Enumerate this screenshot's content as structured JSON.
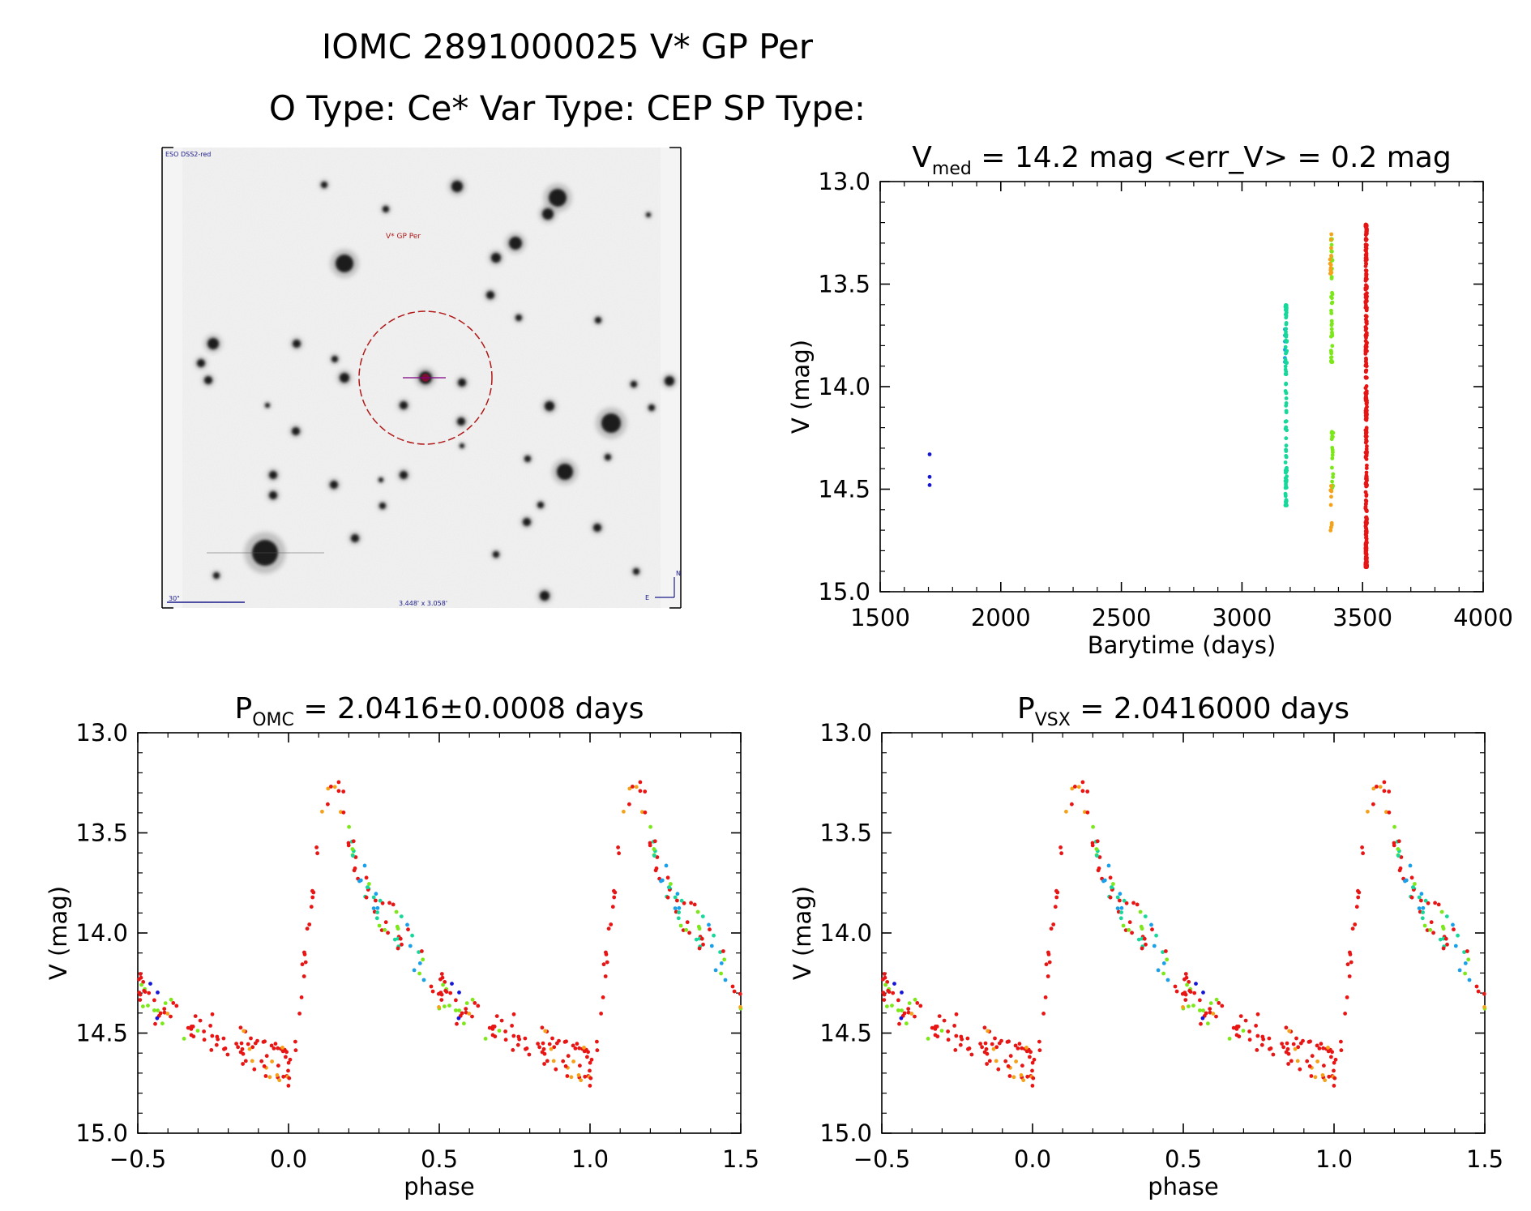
{
  "figure": {
    "title_line1": "IOMC 2891000025   V* GP Per",
    "title_line2": "O Type: Ce*  Var Type: CEP  SP Type:"
  },
  "sky_image": {
    "survey_label": "ESO DSS2-red",
    "target_label": "V* GP Per",
    "scale_label": "30\"",
    "fov_label": "3.448' x 3.058'",
    "north_label": "N",
    "east_label": "E"
  },
  "colors": {
    "blue": "#1515d8",
    "cyan": "#1aa0e8",
    "teal": "#15d89a",
    "green": "#7ce81a",
    "orange": "#f5a21a",
    "red": "#e81515",
    "circle": "#b01818",
    "target_mark": "#800080"
  },
  "chart_data": [
    {
      "id": "lightcurve",
      "type": "scatter",
      "title_main": "V",
      "title_sub": "med",
      "title_rest": " = 14.2 mag <err_V> = 0.2 mag",
      "xlabel": "Barytime (days)",
      "ylabel": "V (mag)",
      "xlim": [
        1500,
        4000
      ],
      "ylim": [
        15.0,
        13.0
      ],
      "xticks": [
        "1500",
        "2000",
        "2500",
        "3000",
        "3500",
        "4000"
      ],
      "yticks": [
        "13.0",
        "13.5",
        "14.0",
        "14.5",
        "15.0"
      ],
      "groups": [
        {
          "color": "blue",
          "x": 1705,
          "mags": [
            14.33,
            14.44,
            14.48
          ]
        },
        {
          "color": "cyan",
          "x": 3178,
          "mags": [
            13.72,
            13.75,
            13.78,
            13.82,
            13.86,
            13.88
          ]
        },
        {
          "color": "teal",
          "x": 3183,
          "range": [
            13.6,
            14.58
          ],
          "n": 90
        },
        {
          "color": "green",
          "x": 3372,
          "range": [
            13.28,
            13.88
          ],
          "n": 45
        },
        {
          "color": "orange",
          "x": 3368,
          "range": [
            13.25,
            13.45
          ],
          "n": 14
        },
        {
          "color": "green",
          "x": 3375,
          "range": [
            14.22,
            14.5
          ],
          "n": 20
        },
        {
          "color": "orange",
          "x": 3370,
          "range": [
            14.45,
            14.73
          ],
          "n": 10
        },
        {
          "color": "red",
          "x": 3515,
          "range": [
            13.21,
            14.88
          ],
          "n": 340
        }
      ]
    },
    {
      "id": "phase_omc",
      "type": "scatter",
      "title_main": "P",
      "title_sub": "OMC",
      "title_rest": " = 2.0416±0.0008 days",
      "xlabel": "phase",
      "ylabel": "V (mag)",
      "xlim": [
        -0.5,
        1.5
      ],
      "ylim": [
        15.0,
        13.0
      ],
      "xticks": [
        "−0.5",
        "0.0",
        "0.5",
        "1.0",
        "1.5"
      ],
      "yticks": [
        "13.0",
        "13.5",
        "14.0",
        "14.5",
        "15.0"
      ],
      "template": [
        [
          0.0,
          14.68
        ],
        [
          0.03,
          14.45
        ],
        [
          0.06,
          14.05
        ],
        [
          0.09,
          13.65
        ],
        [
          0.12,
          13.35
        ],
        [
          0.15,
          13.27
        ],
        [
          0.18,
          13.38
        ],
        [
          0.2,
          13.52
        ],
        [
          0.25,
          13.72
        ],
        [
          0.3,
          13.88
        ],
        [
          0.35,
          13.96
        ],
        [
          0.4,
          14.06
        ],
        [
          0.45,
          14.16
        ],
        [
          0.5,
          14.28
        ],
        [
          0.55,
          14.35
        ],
        [
          0.6,
          14.4
        ],
        [
          0.7,
          14.46
        ],
        [
          0.8,
          14.53
        ],
        [
          0.9,
          14.6
        ],
        [
          0.97,
          14.66
        ],
        [
          1.0,
          14.68
        ]
      ],
      "points_per_cycle": 200
    },
    {
      "id": "phase_vsx",
      "type": "scatter",
      "title_main": "P",
      "title_sub": "VSX",
      "title_rest": " = 2.0416000 days",
      "xlabel": "phase",
      "ylabel": "V (mag)",
      "xlim": [
        -0.5,
        1.5
      ],
      "ylim": [
        15.0,
        13.0
      ],
      "xticks": [
        "−0.5",
        "0.0",
        "0.5",
        "1.0",
        "1.5"
      ],
      "yticks": [
        "13.0",
        "13.5",
        "14.0",
        "14.5",
        "15.0"
      ],
      "template": [
        [
          0.0,
          14.68
        ],
        [
          0.03,
          14.45
        ],
        [
          0.06,
          14.05
        ],
        [
          0.09,
          13.65
        ],
        [
          0.12,
          13.35
        ],
        [
          0.15,
          13.27
        ],
        [
          0.18,
          13.38
        ],
        [
          0.2,
          13.52
        ],
        [
          0.25,
          13.72
        ],
        [
          0.3,
          13.88
        ],
        [
          0.35,
          13.96
        ],
        [
          0.4,
          14.06
        ],
        [
          0.45,
          14.16
        ],
        [
          0.5,
          14.28
        ],
        [
          0.55,
          14.35
        ],
        [
          0.6,
          14.4
        ],
        [
          0.7,
          14.46
        ],
        [
          0.8,
          14.53
        ],
        [
          0.9,
          14.6
        ],
        [
          0.97,
          14.66
        ],
        [
          1.0,
          14.68
        ]
      ],
      "points_per_cycle": 200
    }
  ]
}
